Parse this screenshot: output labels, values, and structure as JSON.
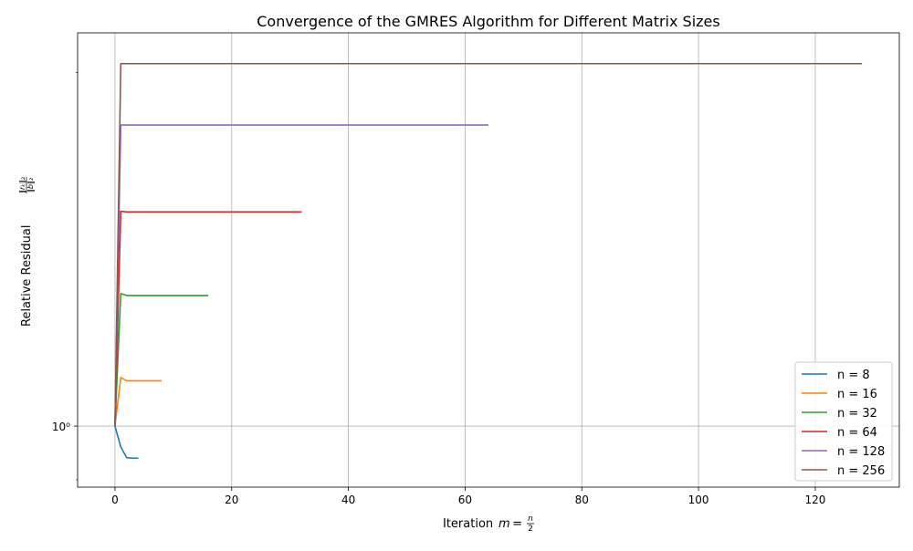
{
  "chart_data": {
    "type": "line",
    "title": "Convergence of the GMRES Algorithm for Different Matrix Sizes",
    "xlabel": "Iteration",
    "xlabel_math_m": "m",
    "xlabel_math_eq": " = ",
    "xlabel_frac_num": "n",
    "xlabel_frac_den": "2",
    "ylabel": "Relative Residual",
    "ylabel_frac_num": "‖rₖ‖₂",
    "ylabel_frac_den": "‖b‖₂",
    "yscale": "log",
    "xlim": [
      -6.4,
      134.4
    ],
    "ylim_log10": [
      -0.052,
      0.335
    ],
    "xticks": [
      0,
      20,
      40,
      60,
      80,
      100,
      120
    ],
    "xtick_labels": [
      "0",
      "20",
      "40",
      "60",
      "80",
      "100",
      "120"
    ],
    "yticks": [
      1
    ],
    "ytick_labels": [
      "10⁰"
    ],
    "grid": true,
    "legend_position": "lower-right",
    "series": [
      {
        "name": "n = 8",
        "color": "#1f77b4",
        "x": [
          0,
          1,
          2,
          3,
          4
        ],
        "y": [
          1.0,
          0.96,
          0.94,
          0.939,
          0.939
        ]
      },
      {
        "name": "n = 16",
        "color": "#ff7f0e",
        "x": [
          0,
          1,
          2,
          3,
          4,
          5,
          6,
          7,
          8
        ],
        "y": [
          1.0,
          1.1,
          1.093,
          1.093,
          1.093,
          1.093,
          1.093,
          1.093,
          1.093
        ]
      },
      {
        "name": "n = 32",
        "color": "#2ca02c",
        "x": [
          0,
          1,
          2,
          3,
          16
        ],
        "y": [
          1.0,
          1.297,
          1.292,
          1.292,
          1.292
        ]
      },
      {
        "name": "n = 64",
        "color": "#d62728",
        "x": [
          0,
          1,
          2,
          32
        ],
        "y": [
          1.0,
          1.524,
          1.522,
          1.522
        ]
      },
      {
        "name": "n = 128",
        "color": "#9467bd",
        "x": [
          0,
          1,
          64
        ],
        "y": [
          1.0,
          1.805,
          1.805
        ]
      },
      {
        "name": "n = 256",
        "color": "#8c564b",
        "x": [
          0,
          1,
          128
        ],
        "y": [
          1.0,
          2.036,
          2.036
        ]
      }
    ]
  }
}
